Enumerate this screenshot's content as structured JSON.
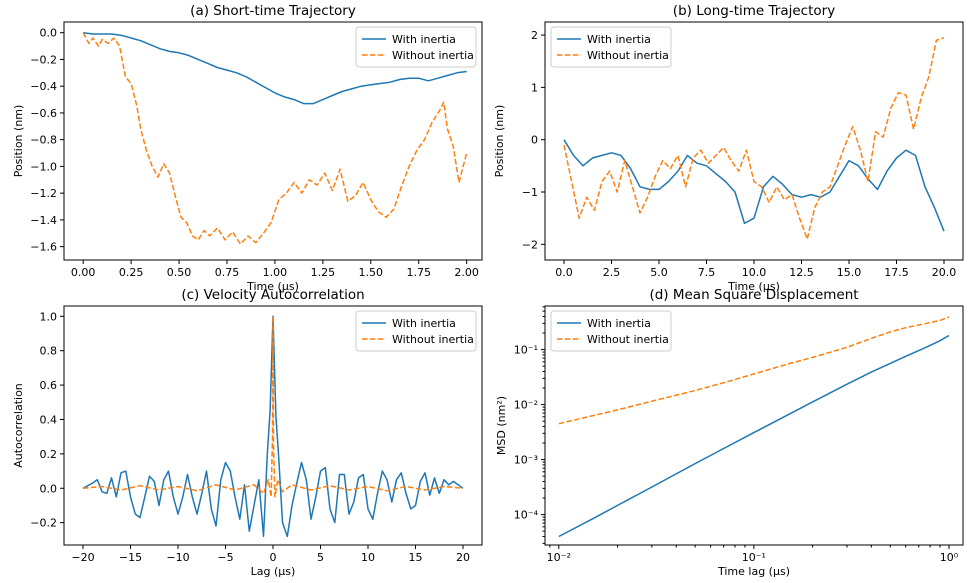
{
  "colors": {
    "inertia": "#1f77b4",
    "no_inertia": "#ff7f0e"
  },
  "chart_data": [
    {
      "type": "line",
      "title": "(a) Short-time Trajectory",
      "xlabel": "Time (μs)",
      "ylabel": "Position (nm)",
      "xlim": [
        -0.1,
        2.08
      ],
      "ylim": [
        -1.7,
        0.08
      ],
      "xticks": [
        0,
        0.25,
        0.5,
        0.75,
        1.0,
        1.25,
        1.5,
        1.75,
        2.0
      ],
      "xtick_labels": [
        "0.00",
        "0.25",
        "0.50",
        "0.75",
        "1.00",
        "1.25",
        "1.50",
        "1.75",
        "2.00"
      ],
      "yticks": [
        0,
        -0.2,
        -0.4,
        -0.6,
        -0.8,
        -1.0,
        -1.2,
        -1.4,
        -1.6
      ],
      "ytick_labels": [
        "0.0",
        "−0.2",
        "−0.4",
        "−0.6",
        "−0.8",
        "−1.0",
        "−1.2",
        "−1.4",
        "−1.6"
      ],
      "legend": "top-right",
      "series": [
        {
          "name": "With inertia",
          "style": "solid",
          "x": [
            0,
            0.05,
            0.1,
            0.15,
            0.2,
            0.25,
            0.3,
            0.35,
            0.4,
            0.45,
            0.5,
            0.55,
            0.6,
            0.65,
            0.7,
            0.75,
            0.8,
            0.85,
            0.9,
            0.95,
            1.0,
            1.05,
            1.1,
            1.15,
            1.2,
            1.25,
            1.3,
            1.35,
            1.4,
            1.45,
            1.5,
            1.55,
            1.6,
            1.65,
            1.7,
            1.75,
            1.8,
            1.85,
            1.9,
            1.95,
            2.0
          ],
          "y": [
            0,
            -0.01,
            -0.01,
            -0.01,
            -0.02,
            -0.04,
            -0.06,
            -0.09,
            -0.12,
            -0.14,
            -0.15,
            -0.17,
            -0.2,
            -0.23,
            -0.26,
            -0.28,
            -0.3,
            -0.33,
            -0.37,
            -0.41,
            -0.45,
            -0.48,
            -0.5,
            -0.53,
            -0.53,
            -0.5,
            -0.47,
            -0.44,
            -0.42,
            -0.4,
            -0.39,
            -0.38,
            -0.37,
            -0.35,
            -0.34,
            -0.34,
            -0.36,
            -0.34,
            -0.32,
            -0.3,
            -0.29
          ]
        },
        {
          "name": "Without inertia",
          "style": "dashed",
          "x": [
            0,
            0.03,
            0.05,
            0.08,
            0.1,
            0.13,
            0.16,
            0.19,
            0.22,
            0.25,
            0.28,
            0.3,
            0.33,
            0.36,
            0.39,
            0.42,
            0.45,
            0.48,
            0.51,
            0.54,
            0.57,
            0.6,
            0.63,
            0.66,
            0.7,
            0.74,
            0.78,
            0.82,
            0.86,
            0.9,
            0.94,
            0.98,
            1.02,
            1.06,
            1.1,
            1.14,
            1.18,
            1.22,
            1.26,
            1.3,
            1.34,
            1.38,
            1.42,
            1.46,
            1.5,
            1.54,
            1.58,
            1.62,
            1.66,
            1.7,
            1.74,
            1.78,
            1.82,
            1.86,
            1.88,
            1.9,
            1.93,
            1.96,
            2.0
          ],
          "y": [
            0,
            -0.08,
            -0.04,
            -0.1,
            -0.05,
            -0.08,
            -0.04,
            -0.1,
            -0.33,
            -0.38,
            -0.55,
            -0.72,
            -0.88,
            -1.0,
            -1.08,
            -0.98,
            -1.05,
            -1.22,
            -1.38,
            -1.42,
            -1.52,
            -1.55,
            -1.48,
            -1.52,
            -1.46,
            -1.55,
            -1.49,
            -1.58,
            -1.52,
            -1.57,
            -1.5,
            -1.42,
            -1.25,
            -1.2,
            -1.12,
            -1.2,
            -1.1,
            -1.14,
            -1.05,
            -1.18,
            -1.02,
            -1.26,
            -1.22,
            -1.12,
            -1.25,
            -1.34,
            -1.38,
            -1.32,
            -1.15,
            -1.0,
            -0.88,
            -0.8,
            -0.67,
            -0.58,
            -0.52,
            -0.72,
            -0.85,
            -1.12,
            -0.9
          ]
        }
      ]
    },
    {
      "type": "line",
      "title": "(b) Long-time Trajectory",
      "xlabel": "Time (μs)",
      "ylabel": "Position (nm)",
      "xlim": [
        -1.0,
        21.0
      ],
      "ylim": [
        -2.3,
        2.25
      ],
      "xticks": [
        0,
        2.5,
        5,
        7.5,
        10,
        12.5,
        15,
        17.5,
        20
      ],
      "xtick_labels": [
        "0.0",
        "2.5",
        "5.0",
        "7.5",
        "10.0",
        "12.5",
        "15.0",
        "17.5",
        "20.0"
      ],
      "yticks": [
        2,
        1,
        0,
        -1,
        -2
      ],
      "ytick_labels": [
        "2",
        "1",
        "0",
        "−1",
        "−2"
      ],
      "legend": "top-left",
      "series": [
        {
          "name": "With inertia",
          "style": "solid",
          "x": [
            0,
            0.5,
            1,
            1.5,
            2,
            2.5,
            3,
            3.5,
            4,
            4.5,
            5,
            5.5,
            6,
            6.5,
            7,
            7.5,
            8,
            8.5,
            9,
            9.5,
            10,
            10.5,
            11,
            11.5,
            12,
            12.5,
            13,
            13.5,
            14,
            14.5,
            15,
            15.5,
            16,
            16.5,
            17,
            17.5,
            18,
            18.5,
            19,
            19.5,
            20
          ],
          "y": [
            0,
            -0.3,
            -0.5,
            -0.35,
            -0.3,
            -0.25,
            -0.3,
            -0.55,
            -0.9,
            -0.95,
            -0.95,
            -0.8,
            -0.6,
            -0.3,
            -0.45,
            -0.5,
            -0.65,
            -0.8,
            -1.0,
            -1.6,
            -1.5,
            -0.9,
            -0.7,
            -0.85,
            -1.05,
            -1.1,
            -1.05,
            -1.1,
            -1.0,
            -0.7,
            -0.4,
            -0.5,
            -0.75,
            -0.95,
            -0.6,
            -0.35,
            -0.2,
            -0.3,
            -0.9,
            -1.3,
            -1.75
          ]
        },
        {
          "name": "Without inertia",
          "style": "dashed",
          "x": [
            0,
            0.4,
            0.8,
            1.2,
            1.6,
            2.0,
            2.4,
            2.8,
            3.2,
            3.6,
            4.0,
            4.4,
            4.8,
            5.2,
            5.6,
            6.0,
            6.4,
            6.8,
            7.2,
            7.6,
            8.0,
            8.4,
            8.8,
            9.2,
            9.6,
            10.0,
            10.4,
            10.8,
            11.2,
            11.6,
            12.0,
            12.4,
            12.8,
            13.2,
            13.6,
            14.0,
            14.4,
            14.8,
            15.2,
            15.6,
            16.0,
            16.4,
            16.8,
            17.2,
            17.6,
            18.0,
            18.4,
            18.8,
            19.2,
            19.6,
            20.0
          ],
          "y": [
            -0.1,
            -0.8,
            -1.5,
            -1.1,
            -1.35,
            -0.8,
            -0.6,
            -1.0,
            -0.4,
            -0.9,
            -1.4,
            -1.1,
            -0.7,
            -0.4,
            -0.55,
            -0.3,
            -0.9,
            -0.35,
            -0.2,
            -0.45,
            -0.3,
            -0.15,
            -0.4,
            -0.6,
            -0.2,
            -0.8,
            -0.9,
            -1.2,
            -0.9,
            -1.15,
            -1.05,
            -1.5,
            -1.9,
            -1.3,
            -1.0,
            -0.9,
            -0.5,
            -0.1,
            0.25,
            -0.2,
            -0.8,
            0.15,
            0.05,
            0.6,
            0.9,
            0.85,
            0.2,
            0.8,
            1.2,
            1.9,
            1.95
          ]
        }
      ]
    },
    {
      "type": "line",
      "title": "(c) Velocity Autocorrelation",
      "xlabel": "Lag (μs)",
      "ylabel": "Autocorrelation",
      "xlim": [
        -22.0,
        22.0
      ],
      "ylim": [
        -0.33,
        1.06
      ],
      "xticks": [
        -20,
        -15,
        -10,
        -5,
        0,
        5,
        10,
        15,
        20
      ],
      "xtick_labels": [
        "−20",
        "−15",
        "−10",
        "−5",
        "0",
        "5",
        "10",
        "15",
        "20"
      ],
      "yticks": [
        1.0,
        0.8,
        0.6,
        0.4,
        0.2,
        0.0,
        -0.2
      ],
      "ytick_labels": [
        "1.0",
        "0.8",
        "0.6",
        "0.4",
        "0.2",
        "0.0",
        "−0.2"
      ],
      "legend": "top-right",
      "series": [
        {
          "name": "With inertia",
          "style": "solid",
          "x": [
            -20,
            -19,
            -18.5,
            -18,
            -17.5,
            -17,
            -16.5,
            -16,
            -15.5,
            -15,
            -14.5,
            -14,
            -13.5,
            -13,
            -12.5,
            -12,
            -11.5,
            -11,
            -10.5,
            -10,
            -9.5,
            -9,
            -8.5,
            -8,
            -7.5,
            -7,
            -6.5,
            -6,
            -5.5,
            -5,
            -4.5,
            -4,
            -3.5,
            -3,
            -2.5,
            -2,
            -1.5,
            -1,
            -0.6,
            -0.3,
            0,
            0.3,
            0.6,
            1,
            1.5,
            2,
            2.5,
            3,
            3.5,
            4,
            4.5,
            5,
            5.5,
            6,
            6.5,
            7,
            7.5,
            8,
            8.5,
            9,
            9.5,
            10,
            10.5,
            11,
            11.5,
            12,
            12.5,
            13,
            13.5,
            14,
            14.5,
            15,
            15.5,
            16,
            16.5,
            17,
            17.5,
            18,
            18.5,
            19,
            20
          ],
          "y": [
            0,
            0.03,
            0.05,
            -0.02,
            -0.03,
            0.06,
            -0.05,
            0.09,
            0.1,
            -0.05,
            -0.15,
            -0.17,
            -0.05,
            0.07,
            0.04,
            -0.1,
            0.05,
            0.1,
            -0.05,
            -0.15,
            -0.05,
            0.08,
            -0.05,
            -0.15,
            -0.03,
            0.1,
            -0.12,
            -0.22,
            0.05,
            0.15,
            0.1,
            -0.05,
            -0.18,
            0.02,
            -0.25,
            -0.1,
            0.05,
            -0.28,
            0.2,
            0.45,
            1.0,
            0.42,
            0.18,
            -0.2,
            -0.28,
            -0.1,
            0.03,
            0.15,
            0.05,
            -0.18,
            -0.05,
            0.1,
            0.12,
            -0.12,
            -0.2,
            0.08,
            0.08,
            -0.15,
            -0.08,
            0.06,
            0.08,
            -0.12,
            -0.18,
            -0.03,
            0.1,
            0.05,
            -0.08,
            0.05,
            0.09,
            -0.03,
            -0.12,
            -0.1,
            0.04,
            0.09,
            -0.04,
            0.06,
            -0.03,
            0.05,
            0.02,
            0.04,
            0
          ]
        },
        {
          "name": "Without inertia",
          "style": "dashed",
          "x": [
            -20,
            -18,
            -16,
            -14,
            -12,
            -10,
            -8,
            -6,
            -4,
            -2,
            -1,
            -0.5,
            -0.2,
            -0.05,
            0,
            0.05,
            0.2,
            0.5,
            1,
            2,
            4,
            6,
            8,
            10,
            12,
            14,
            16,
            18,
            20
          ],
          "y": [
            0,
            0.01,
            -0.01,
            0.015,
            -0.01,
            0.01,
            -0.015,
            0.02,
            -0.01,
            0.02,
            -0.03,
            0.05,
            -0.05,
            0.3,
            1.0,
            0.25,
            -0.05,
            0.05,
            -0.02,
            0.02,
            -0.01,
            0.015,
            -0.01,
            0.01,
            -0.015,
            0.01,
            -0.01,
            0.01,
            0
          ]
        }
      ]
    },
    {
      "type": "line",
      "title": "(d) Mean Square Displacement",
      "xlabel": "Time lag (μs)",
      "ylabel": "MSD (nm²)",
      "xscale": "log",
      "yscale": "log",
      "xlim": [
        0.0085,
        1.18
      ],
      "ylim": [
        2.8e-05,
        0.62
      ],
      "xticks": [
        0.01,
        0.1,
        1
      ],
      "xtick_labels": [
        "10⁻²",
        "10⁻¹",
        "10⁰"
      ],
      "yticks": [
        0.0001,
        0.001,
        0.01,
        0.1
      ],
      "ytick_labels": [
        "10⁻⁴",
        "10⁻³",
        "10⁻²",
        "10⁻¹"
      ],
      "legend": "top-left",
      "series": [
        {
          "name": "With inertia",
          "style": "solid",
          "x": [
            0.01,
            0.015,
            0.02,
            0.03,
            0.05,
            0.07,
            0.1,
            0.15,
            0.2,
            0.3,
            0.4,
            0.5,
            0.6,
            0.7,
            0.8,
            0.9,
            1.0
          ],
          "y": [
            4e-05,
            8.46e-05,
            0.000147,
            0.000318,
            0.000846,
            0.00159,
            0.0031,
            0.00656,
            0.0112,
            0.0235,
            0.0389,
            0.0561,
            0.0755,
            0.0958,
            0.119,
            0.145,
            0.18
          ]
        },
        {
          "name": "Without inertia",
          "style": "dashed",
          "x": [
            0.01,
            0.015,
            0.02,
            0.03,
            0.05,
            0.07,
            0.1,
            0.15,
            0.2,
            0.3,
            0.4,
            0.5,
            0.6,
            0.7,
            0.8,
            0.9,
            1.0
          ],
          "y": [
            0.0045,
            0.0063,
            0.008,
            0.0115,
            0.018,
            0.025,
            0.036,
            0.055,
            0.072,
            0.11,
            0.16,
            0.21,
            0.25,
            0.28,
            0.31,
            0.34,
            0.39
          ]
        }
      ]
    }
  ]
}
